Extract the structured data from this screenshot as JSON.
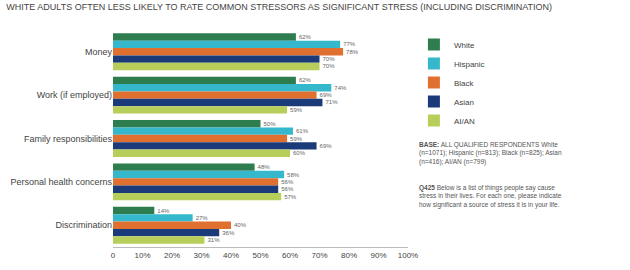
{
  "chart_data": {
    "type": "bar",
    "orientation": "horizontal",
    "title": "WHITE ADULTS OFTEN LESS LIKELY TO RATE COMMON STRESSORS AS SIGNIFICANT STRESS (INCLUDING DISCRIMINATION)",
    "categories": [
      "Money",
      "Work (if employed)",
      "Family responsibilities",
      "Personal health concerns",
      "Discrimination"
    ],
    "series": [
      {
        "name": "White",
        "color": "#2e7d4f",
        "values": [
          62,
          62,
          50,
          48,
          14
        ],
        "value_labels": [
          "62%",
          "62%",
          "50%",
          "48%",
          "14%"
        ]
      },
      {
        "name": "Hispanic",
        "color": "#35b8cc",
        "values": [
          77,
          74,
          61,
          58,
          27
        ],
        "value_labels": [
          "77%",
          "74%",
          "61%",
          "58%",
          "27%"
        ]
      },
      {
        "name": "Black",
        "color": "#e07030",
        "values": [
          78,
          69,
          59,
          56,
          40
        ],
        "value_labels": [
          "78%",
          "69%",
          "59%",
          "56%",
          "40%"
        ]
      },
      {
        "name": "Asian",
        "color": "#1b3a7a",
        "values": [
          70,
          71,
          69,
          56,
          36
        ],
        "value_labels": [
          "70%",
          "71%",
          "69%",
          "56%",
          "36%"
        ]
      },
      {
        "name": "AI/AN",
        "color": "#b8ce5a",
        "values": [
          70,
          59,
          60,
          57,
          31
        ],
        "value_labels": [
          "70%",
          "59%",
          "60%",
          "57%",
          "31%"
        ]
      }
    ],
    "xlim": [
      0,
      100
    ],
    "xticks": [
      0,
      {
        "value": 10,
        "label": "10%"
      },
      {
        "value": 20,
        "label": "20%"
      },
      {
        "value": 30,
        "label": "30%"
      },
      {
        "value": 40,
        "label": "40%"
      },
      {
        "value": 50,
        "label": "50%"
      },
      {
        "value": 60,
        "label": "60%"
      },
      {
        "value": 70,
        "label": "70%"
      },
      {
        "value": 80,
        "label": "80%"
      },
      {
        "value": 90,
        "label": "90%"
      },
      {
        "value": 100,
        "label": "100%"
      }
    ],
    "grid": false,
    "legend": "right",
    "data_labels": true,
    "annotations": [
      "BASE: ALL QUALIFIED RESPONDENTS White\n(n=1071); Hispanic (n=813); Black (n=825); Asian\n(n=416); AI/AN (n=799)",
      "Q425 Below is a list of things people say cause\nstress in their lives. For each one, please indicate\nhow significant a source of stress it is in your life."
    ]
  }
}
